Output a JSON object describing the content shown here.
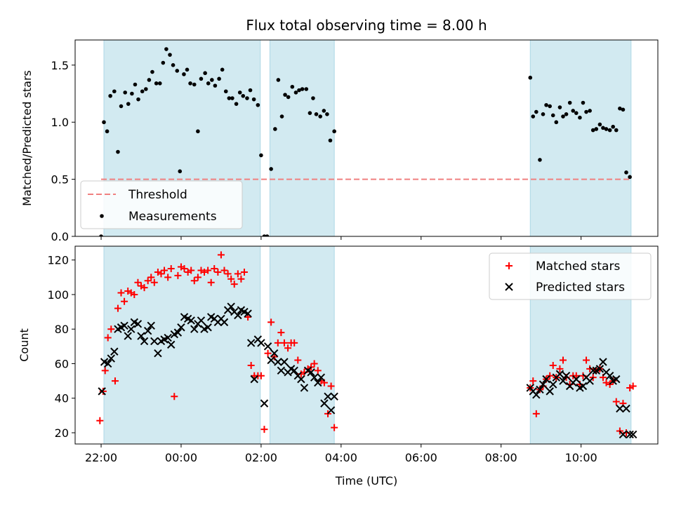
{
  "chart_data": {
    "type": "scatter",
    "title": "Flux total observing time = 8.00 h",
    "xlabel": "Time (UTC)",
    "x_unit": "hours since 00:00 UTC of the second night day (negative = previous evening)",
    "xlim": [
      -2.65,
      11.92
    ],
    "xticks": [
      {
        "value": -2,
        "label": "22:00"
      },
      {
        "value": 0,
        "label": "00:00"
      },
      {
        "value": 2,
        "label": "02:00"
      },
      {
        "value": 4,
        "label": "04:00"
      },
      {
        "value": 6,
        "label": "06:00"
      },
      {
        "value": 8,
        "label": "08:00"
      },
      {
        "value": 10,
        "label": "10:00"
      }
    ],
    "observing_windows": [
      [
        -1.93,
        1.98
      ],
      [
        2.22,
        3.83
      ],
      [
        8.73,
        11.25
      ]
    ],
    "window_color": "#add8e6",
    "panels": [
      {
        "name": "ratio",
        "ylabel": "Matched/Predicted stars",
        "ylim": [
          0,
          1.72
        ],
        "yticks": [
          {
            "value": 0.0,
            "label": "0.0"
          },
          {
            "value": 0.5,
            "label": "0.5"
          },
          {
            "value": 1.0,
            "label": "1.0"
          },
          {
            "value": 1.5,
            "label": "1.5"
          }
        ],
        "legend": {
          "placement": "lower-left",
          "entries": [
            {
              "label": "Threshold",
              "marker": "dashed-line",
              "color": "#f08080"
            },
            {
              "label": "Measurements",
              "marker": "dot",
              "color": "#000000"
            }
          ]
        },
        "threshold": {
          "name": "Threshold",
          "value": 0.5,
          "x_range": [
            -2.0,
            11.25
          ],
          "color": "#f08080",
          "style": "dashed"
        },
        "measurements": {
          "name": "Measurements",
          "color": "#000000",
          "x": [
            -2.0,
            -1.93,
            -1.85,
            -1.77,
            -1.67,
            -1.58,
            -1.5,
            -1.4,
            -1.32,
            -1.23,
            -1.15,
            -1.07,
            -0.97,
            -0.88,
            -0.8,
            -0.72,
            -0.62,
            -0.53,
            -0.45,
            -0.37,
            -0.28,
            -0.2,
            -0.1,
            -0.03,
            0.07,
            0.15,
            0.23,
            0.33,
            0.42,
            0.5,
            0.6,
            0.68,
            0.77,
            0.85,
            0.95,
            1.03,
            1.12,
            1.2,
            1.28,
            1.38,
            1.47,
            1.55,
            1.65,
            1.73,
            1.82,
            1.92,
            2.0,
            2.08,
            2.15,
            2.25,
            2.35,
            2.43,
            2.52,
            2.6,
            2.68,
            2.78,
            2.87,
            2.95,
            3.03,
            3.13,
            3.22,
            3.3,
            3.38,
            3.48,
            3.57,
            3.65,
            3.73,
            3.83,
            8.73,
            8.8,
            8.88,
            8.97,
            9.05,
            9.13,
            9.22,
            9.3,
            9.38,
            9.47,
            9.55,
            9.63,
            9.72,
            9.8,
            9.88,
            9.97,
            10.05,
            10.13,
            10.22,
            10.3,
            10.38,
            10.47,
            10.55,
            10.63,
            10.72,
            10.8,
            10.88,
            10.97,
            11.05,
            11.13,
            11.22
          ],
          "y": [
            0.0,
            1.0,
            0.92,
            1.23,
            1.27,
            0.74,
            1.14,
            1.26,
            1.16,
            1.25,
            1.33,
            1.2,
            1.27,
            1.29,
            1.37,
            1.44,
            1.34,
            1.34,
            1.52,
            1.64,
            1.59,
            1.5,
            1.45,
            0.57,
            1.42,
            1.46,
            1.34,
            1.33,
            0.92,
            1.38,
            1.43,
            1.34,
            1.37,
            1.32,
            1.38,
            1.46,
            1.27,
            1.21,
            1.21,
            1.16,
            1.26,
            1.23,
            1.21,
            1.28,
            1.2,
            1.15,
            0.71,
            0.0,
            0.0,
            0.59,
            0.94,
            1.37,
            1.05,
            1.24,
            1.22,
            1.31,
            1.26,
            1.28,
            1.29,
            1.29,
            1.08,
            1.21,
            1.07,
            1.05,
            1.1,
            1.07,
            0.84,
            0.92,
            1.39,
            1.05,
            1.09,
            0.67,
            1.07,
            1.15,
            1.14,
            1.06,
            1.0,
            1.13,
            1.05,
            1.07,
            1.17,
            1.1,
            1.08,
            1.04,
            1.17,
            1.09,
            1.1,
            0.93,
            0.94,
            0.98,
            0.95,
            0.94,
            0.93,
            0.96,
            0.93,
            1.12,
            1.11,
            0.56,
            0.52
          ]
        }
      },
      {
        "name": "counts",
        "ylabel": "Count",
        "ylim": [
          13.5,
          128
        ],
        "yticks": [
          {
            "value": 20,
            "label": "20"
          },
          {
            "value": 40,
            "label": "40"
          },
          {
            "value": 60,
            "label": "60"
          },
          {
            "value": 80,
            "label": "80"
          },
          {
            "value": 100,
            "label": "100"
          },
          {
            "value": 120,
            "label": "120"
          }
        ],
        "legend": {
          "placement": "top-right",
          "entries": [
            {
              "label": "Matched stars",
              "marker": "plus",
              "color": "#ff0000"
            },
            {
              "label": "Predicted stars",
              "marker": "x",
              "color": "#000000"
            }
          ]
        },
        "series": [
          {
            "name": "Matched stars",
            "marker": "plus",
            "color": "#ff0000",
            "x": [
              -2.03,
              -1.95,
              -1.9,
              -1.83,
              -1.75,
              -1.65,
              -1.58,
              -1.5,
              -1.42,
              -1.33,
              -1.25,
              -1.17,
              -1.08,
              -1.0,
              -0.92,
              -0.83,
              -0.75,
              -0.67,
              -0.58,
              -0.5,
              -0.42,
              -0.33,
              -0.25,
              -0.17,
              -0.08,
              0.0,
              0.08,
              0.17,
              0.25,
              0.33,
              0.42,
              0.5,
              0.58,
              0.67,
              0.75,
              0.83,
              0.92,
              1.0,
              1.08,
              1.17,
              1.25,
              1.33,
              1.42,
              1.5,
              1.58,
              1.67,
              1.75,
              1.83,
              1.92,
              2.0,
              2.08,
              2.17,
              2.25,
              2.33,
              2.42,
              2.5,
              2.58,
              2.67,
              2.75,
              2.83,
              2.92,
              3.0,
              3.08,
              3.17,
              3.25,
              3.33,
              3.42,
              3.5,
              3.58,
              3.67,
              3.75,
              3.83,
              8.73,
              8.8,
              8.88,
              8.97,
              9.05,
              9.13,
              9.22,
              9.3,
              9.38,
              9.47,
              9.55,
              9.63,
              9.72,
              9.8,
              9.88,
              9.97,
              10.05,
              10.13,
              10.22,
              10.3,
              10.38,
              10.47,
              10.55,
              10.63,
              10.72,
              10.8,
              10.88,
              10.97,
              11.05,
              11.13,
              11.22,
              11.3
            ],
            "y": [
              27,
              44,
              56,
              75,
              80,
              50,
              92,
              101,
              96,
              102,
              101,
              100,
              107,
              105,
              104,
              108,
              110,
              107,
              113,
              112,
              114,
              110,
              115,
              41,
              111,
              116,
              115,
              113,
              114,
              108,
              110,
              114,
              113,
              114,
              107,
              115,
              113,
              123,
              114,
              112,
              109,
              106,
              112,
              109,
              113,
              87,
              59,
              53,
              53,
              53,
              22,
              66,
              84,
              64,
              72,
              78,
              72,
              69,
              72,
              72,
              62,
              54,
              55,
              57,
              58,
              60,
              56,
              50,
              49,
              31,
              47,
              23,
              46,
              50,
              31,
              45,
              47,
              51,
              53,
              59,
              52,
              57,
              62,
              52,
              48,
              53,
              53,
              48,
              53,
              62,
              57,
              52,
              56,
              57,
              52,
              49,
              48,
              50,
              38,
              21,
              37,
              20,
              46,
              47
            ],
            "x_note": "approximate positions read from figure"
          },
          {
            "name": "Predicted stars",
            "marker": "x",
            "color": "#000000",
            "x": [
              -1.98,
              -1.92,
              -1.83,
              -1.75,
              -1.67,
              -1.58,
              -1.5,
              -1.42,
              -1.33,
              -1.25,
              -1.17,
              -1.08,
              -1.0,
              -0.92,
              -0.83,
              -0.75,
              -0.67,
              -0.58,
              -0.5,
              -0.42,
              -0.33,
              -0.25,
              -0.17,
              -0.08,
              0.0,
              0.08,
              0.17,
              0.25,
              0.33,
              0.42,
              0.5,
              0.58,
              0.67,
              0.75,
              0.83,
              0.92,
              1.0,
              1.08,
              1.17,
              1.25,
              1.33,
              1.42,
              1.5,
              1.58,
              1.67,
              1.75,
              1.83,
              1.92,
              2.0,
              2.08,
              2.17,
              2.25,
              2.33,
              2.42,
              2.5,
              2.58,
              2.67,
              2.75,
              2.83,
              2.92,
              3.0,
              3.08,
              3.17,
              3.25,
              3.33,
              3.42,
              3.5,
              3.58,
              3.67,
              3.75,
              3.83,
              8.73,
              8.8,
              8.88,
              8.97,
              9.05,
              9.13,
              9.22,
              9.3,
              9.38,
              9.47,
              9.55,
              9.63,
              9.72,
              9.8,
              9.88,
              9.97,
              10.05,
              10.13,
              10.22,
              10.3,
              10.38,
              10.47,
              10.55,
              10.63,
              10.72,
              10.8,
              10.88,
              10.97,
              11.05,
              11.13,
              11.22,
              11.3
            ],
            "y": [
              44,
              61,
              60,
              63,
              67,
              80,
              81,
              82,
              76,
              80,
              84,
              83,
              76,
              73,
              79,
              82,
              73,
              66,
              73,
              74,
              75,
              71,
              77,
              78,
              81,
              87,
              86,
              85,
              80,
              83,
              85,
              80,
              81,
              87,
              86,
              84,
              86,
              84,
              91,
              93,
              90,
              88,
              91,
              90,
              89,
              72,
              51,
              74,
              72,
              37,
              70,
              62,
              66,
              61,
              56,
              61,
              55,
              57,
              56,
              53,
              51,
              46,
              56,
              55,
              52,
              49,
              52,
              37,
              41,
              33,
              41,
              46,
              44,
              42,
              45,
              48,
              51,
              44,
              48,
              52,
              54,
              50,
              53,
              47,
              49,
              51,
              46,
              47,
              52,
              50,
              56,
              56,
              57,
              61,
              55,
              53,
              50,
              51,
              34,
              19,
              34,
              19,
              19
            ],
            "x_note": "approximate positions read from figure"
          }
        ]
      }
    ]
  }
}
